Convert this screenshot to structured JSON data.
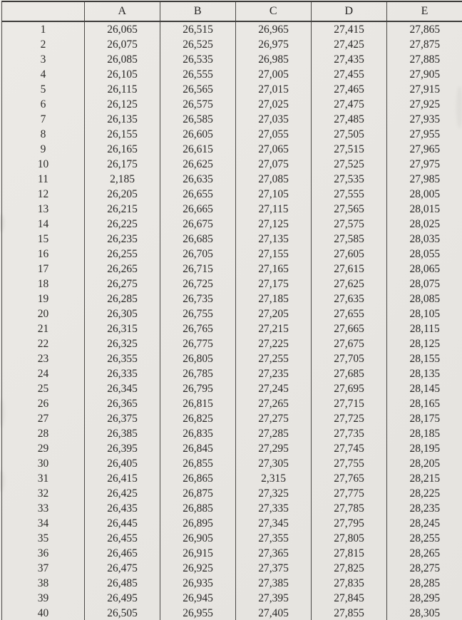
{
  "page": {
    "background": "#e8e6e2",
    "text_color": "#262524",
    "border_color": "#3d3c3a"
  },
  "table": {
    "corner_label": "",
    "columns": [
      "A",
      "B",
      "C",
      "D",
      "E"
    ],
    "rows": [
      {
        "n": "1",
        "values": [
          "26,065",
          "26,515",
          "26,965",
          "27,415",
          "27,865"
        ]
      },
      {
        "n": "2",
        "values": [
          "26,075",
          "26,525",
          "26,975",
          "27,425",
          "27,875"
        ]
      },
      {
        "n": "3",
        "values": [
          "26,085",
          "26,535",
          "26,985",
          "27,435",
          "27,885"
        ]
      },
      {
        "n": "4",
        "values": [
          "26,105",
          "26,555",
          "27,005",
          "27,455",
          "27,905"
        ]
      },
      {
        "n": "5",
        "values": [
          "26,115",
          "26,565",
          "27,015",
          "27,465",
          "27,915"
        ]
      },
      {
        "n": "6",
        "values": [
          "26,125",
          "26,575",
          "27,025",
          "27,475",
          "27,925"
        ]
      },
      {
        "n": "7",
        "values": [
          "26,135",
          "26,585",
          "27,035",
          "27,485",
          "27,935"
        ]
      },
      {
        "n": "8",
        "values": [
          "26,155",
          "26,605",
          "27,055",
          "27,505",
          "27,955"
        ]
      },
      {
        "n": "9",
        "values": [
          "26,165",
          "26,615",
          "27,065",
          "27,515",
          "27,965"
        ]
      },
      {
        "n": "10",
        "values": [
          "26,175",
          "26,625",
          "27,075",
          "27,525",
          "27,975"
        ]
      },
      {
        "n": "11",
        "values": [
          "2,185",
          "26,635",
          "27,085",
          "27,535",
          "27,985"
        ]
      },
      {
        "n": "12",
        "values": [
          "26,205",
          "26,655",
          "27,105",
          "27,555",
          "28,005"
        ]
      },
      {
        "n": "13",
        "values": [
          "26,215",
          "26,665",
          "27,115",
          "27,565",
          "28,015"
        ]
      },
      {
        "n": "14",
        "values": [
          "26,225",
          "26,675",
          "27,125",
          "27,575",
          "28,025"
        ]
      },
      {
        "n": "15",
        "values": [
          "26,235",
          "26,685",
          "27,135",
          "27,585",
          "28,035"
        ]
      },
      {
        "n": "16",
        "values": [
          "26,255",
          "26,705",
          "27,155",
          "27,605",
          "28,055"
        ]
      },
      {
        "n": "17",
        "values": [
          "26,265",
          "26,715",
          "27,165",
          "27,615",
          "28,065"
        ]
      },
      {
        "n": "18",
        "values": [
          "26,275",
          "26,725",
          "27,175",
          "27,625",
          "28,075"
        ]
      },
      {
        "n": "19",
        "values": [
          "26,285",
          "26,735",
          "27,185",
          "27,635",
          "28,085"
        ]
      },
      {
        "n": "20",
        "values": [
          "26,305",
          "26,755",
          "27,205",
          "27,655",
          "28,105"
        ]
      },
      {
        "n": "21",
        "values": [
          "26,315",
          "26,765",
          "27,215",
          "27,665",
          "28,115"
        ]
      },
      {
        "n": "22",
        "values": [
          "26,325",
          "26,775",
          "27,225",
          "27,675",
          "28,125"
        ]
      },
      {
        "n": "23",
        "values": [
          "26,355",
          "26,805",
          "27,255",
          "27,705",
          "28,155"
        ]
      },
      {
        "n": "24",
        "values": [
          "26,335",
          "26,785",
          "27,235",
          "27,685",
          "28,135"
        ]
      },
      {
        "n": "25",
        "values": [
          "26,345",
          "26,795",
          "27,245",
          "27,695",
          "28,145"
        ]
      },
      {
        "n": "26",
        "values": [
          "26,365",
          "26,815",
          "27,265",
          "27,715",
          "28,165"
        ]
      },
      {
        "n": "27",
        "values": [
          "26,375",
          "26,825",
          "27,275",
          "27,725",
          "28,175"
        ]
      },
      {
        "n": "28",
        "values": [
          "26,385",
          "26,835",
          "27,285",
          "27,735",
          "28,185"
        ]
      },
      {
        "n": "29",
        "values": [
          "26,395",
          "26,845",
          "27,295",
          "27,745",
          "28,195"
        ]
      },
      {
        "n": "30",
        "values": [
          "26,405",
          "26,855",
          "27,305",
          "27,755",
          "28,205"
        ]
      },
      {
        "n": "31",
        "values": [
          "26,415",
          "26,865",
          "2,315",
          "27,765",
          "28,215"
        ]
      },
      {
        "n": "32",
        "values": [
          "26,425",
          "26,875",
          "27,325",
          "27,775",
          "28,225"
        ]
      },
      {
        "n": "33",
        "values": [
          "26,435",
          "26,885",
          "27,335",
          "27,785",
          "28,235"
        ]
      },
      {
        "n": "34",
        "values": [
          "26,445",
          "26,895",
          "27,345",
          "27,795",
          "28,245"
        ]
      },
      {
        "n": "35",
        "values": [
          "26,455",
          "26,905",
          "27,355",
          "27,805",
          "28,255"
        ]
      },
      {
        "n": "36",
        "values": [
          "26,465",
          "26,915",
          "27,365",
          "27,815",
          "28,265"
        ]
      },
      {
        "n": "37",
        "values": [
          "26,475",
          "26,925",
          "27,375",
          "27,825",
          "28,275"
        ]
      },
      {
        "n": "38",
        "values": [
          "26,485",
          "26,935",
          "27,385",
          "27,835",
          "28,285"
        ]
      },
      {
        "n": "39",
        "values": [
          "26,495",
          "26,945",
          "27,395",
          "27,845",
          "28,295"
        ]
      },
      {
        "n": "40",
        "values": [
          "26,505",
          "26,955",
          "27,405",
          "27,855",
          "28,305"
        ]
      }
    ]
  }
}
